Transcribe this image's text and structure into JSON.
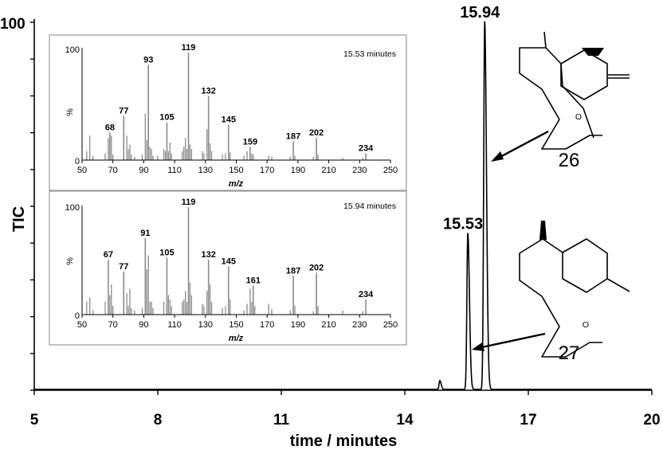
{
  "chart_data": [
    {
      "type": "line",
      "name": "total ion chromatogram",
      "xlabel": "time / minutes",
      "ylabel": "TIC",
      "xlim": [
        5,
        20
      ],
      "ylim": [
        0,
        100
      ],
      "x_ticks": [
        5,
        8,
        11,
        14,
        17,
        20
      ],
      "x_tick_labels": [
        "5",
        "8",
        "11",
        "14",
        "17",
        "20"
      ],
      "y_tick_label_top": "100",
      "y_minor_ticks": 10,
      "peaks": [
        {
          "time": 14.85,
          "height": 2.4,
          "label": ""
        },
        {
          "time": 15.53,
          "height": 42.5,
          "label": "15.53"
        },
        {
          "time": 15.94,
          "height": 100,
          "label": "15.94"
        }
      ],
      "compounds": [
        {
          "label": "26",
          "peak": "15.94"
        },
        {
          "label": "27",
          "peak": "15.53"
        }
      ]
    },
    {
      "type": "bar",
      "name": "mass spectrum 15.53 minutes",
      "title": "15.53 minutes",
      "xlabel": "m/z",
      "ylabel": "%",
      "y_top_label": "100",
      "y_zero_label": "0",
      "xlim": [
        50,
        250
      ],
      "ylim": [
        0,
        100
      ],
      "x_ticks": [
        50,
        70,
        90,
        110,
        130,
        150,
        170,
        190,
        210,
        230,
        250
      ],
      "labeled_peaks": [
        {
          "mz": 68,
          "intensity": 25,
          "label": "68"
        },
        {
          "mz": 77,
          "intensity": 40,
          "label": "77"
        },
        {
          "mz": 93,
          "intensity": 86,
          "label": "93"
        },
        {
          "mz": 105,
          "intensity": 34,
          "label": "105"
        },
        {
          "mz": 119,
          "intensity": 97,
          "label": "119"
        },
        {
          "mz": 132,
          "intensity": 58,
          "label": "132"
        },
        {
          "mz": 145,
          "intensity": 32,
          "label": "145"
        },
        {
          "mz": 159,
          "intensity": 12,
          "label": "159"
        },
        {
          "mz": 187,
          "intensity": 17,
          "label": "187"
        },
        {
          "mz": 202,
          "intensity": 20,
          "label": "202"
        },
        {
          "mz": 234,
          "intensity": 6,
          "label": "234"
        }
      ],
      "minor_peaks": [
        {
          "mz": 53,
          "intensity": 8
        },
        {
          "mz": 55,
          "intensity": 22
        },
        {
          "mz": 57,
          "intensity": 4
        },
        {
          "mz": 65,
          "intensity": 6
        },
        {
          "mz": 67,
          "intensity": 20
        },
        {
          "mz": 69,
          "intensity": 22
        },
        {
          "mz": 70,
          "intensity": 5
        },
        {
          "mz": 79,
          "intensity": 22
        },
        {
          "mz": 80,
          "intensity": 10
        },
        {
          "mz": 81,
          "intensity": 14
        },
        {
          "mz": 82,
          "intensity": 5
        },
        {
          "mz": 84,
          "intensity": 3
        },
        {
          "mz": 89,
          "intensity": 5
        },
        {
          "mz": 91,
          "intensity": 42
        },
        {
          "mz": 92,
          "intensity": 18
        },
        {
          "mz": 94,
          "intensity": 12
        },
        {
          "mz": 95,
          "intensity": 10
        },
        {
          "mz": 96,
          "intensity": 4
        },
        {
          "mz": 99,
          "intensity": 4
        },
        {
          "mz": 103,
          "intensity": 10
        },
        {
          "mz": 104,
          "intensity": 8
        },
        {
          "mz": 106,
          "intensity": 8
        },
        {
          "mz": 107,
          "intensity": 16
        },
        {
          "mz": 108,
          "intensity": 6
        },
        {
          "mz": 115,
          "intensity": 8
        },
        {
          "mz": 116,
          "intensity": 12
        },
        {
          "mz": 117,
          "intensity": 20
        },
        {
          "mz": 118,
          "intensity": 10
        },
        {
          "mz": 120,
          "intensity": 14
        },
        {
          "mz": 121,
          "intensity": 10
        },
        {
          "mz": 128,
          "intensity": 8
        },
        {
          "mz": 129,
          "intensity": 6
        },
        {
          "mz": 131,
          "intensity": 28
        },
        {
          "mz": 133,
          "intensity": 15
        },
        {
          "mz": 134,
          "intensity": 8
        },
        {
          "mz": 141,
          "intensity": 5
        },
        {
          "mz": 143,
          "intensity": 6
        },
        {
          "mz": 146,
          "intensity": 7
        },
        {
          "mz": 155,
          "intensity": 4
        },
        {
          "mz": 157,
          "intensity": 8
        },
        {
          "mz": 160,
          "intensity": 6
        },
        {
          "mz": 161,
          "intensity": 5
        },
        {
          "mz": 171,
          "intensity": 4
        },
        {
          "mz": 173,
          "intensity": 3
        },
        {
          "mz": 185,
          "intensity": 3
        },
        {
          "mz": 188,
          "intensity": 4
        },
        {
          "mz": 200,
          "intensity": 3
        },
        {
          "mz": 203,
          "intensity": 5
        },
        {
          "mz": 219,
          "intensity": 2
        },
        {
          "mz": 232,
          "intensity": 2
        }
      ]
    },
    {
      "type": "bar",
      "name": "mass spectrum 15.94 minutes",
      "title": "15.94 minutes",
      "xlabel": "m/z",
      "ylabel": "%",
      "y_top_label": "100",
      "y_zero_label": "0",
      "xlim": [
        50,
        250
      ],
      "ylim": [
        0,
        100
      ],
      "x_ticks": [
        50,
        70,
        90,
        110,
        130,
        150,
        170,
        190,
        210,
        230,
        250
      ],
      "labeled_peaks": [
        {
          "mz": 67,
          "intensity": 51,
          "label": "67"
        },
        {
          "mz": 77,
          "intensity": 40,
          "label": "77"
        },
        {
          "mz": 91,
          "intensity": 71,
          "label": "91"
        },
        {
          "mz": 105,
          "intensity": 53,
          "label": "105"
        },
        {
          "mz": 119,
          "intensity": 100,
          "label": "119"
        },
        {
          "mz": 132,
          "intensity": 51,
          "label": "132"
        },
        {
          "mz": 145,
          "intensity": 45,
          "label": "145"
        },
        {
          "mz": 161,
          "intensity": 27,
          "label": "161"
        },
        {
          "mz": 187,
          "intensity": 36,
          "label": "187"
        },
        {
          "mz": 202,
          "intensity": 39,
          "label": "202"
        },
        {
          "mz": 234,
          "intensity": 14,
          "label": "234"
        }
      ],
      "minor_peaks": [
        {
          "mz": 53,
          "intensity": 12
        },
        {
          "mz": 55,
          "intensity": 16
        },
        {
          "mz": 57,
          "intensity": 4
        },
        {
          "mz": 65,
          "intensity": 12
        },
        {
          "mz": 68,
          "intensity": 18
        },
        {
          "mz": 69,
          "intensity": 28
        },
        {
          "mz": 70,
          "intensity": 8
        },
        {
          "mz": 79,
          "intensity": 20
        },
        {
          "mz": 80,
          "intensity": 8
        },
        {
          "mz": 81,
          "intensity": 24
        },
        {
          "mz": 82,
          "intensity": 6
        },
        {
          "mz": 84,
          "intensity": 4
        },
        {
          "mz": 89,
          "intensity": 6
        },
        {
          "mz": 92,
          "intensity": 42
        },
        {
          "mz": 93,
          "intensity": 55
        },
        {
          "mz": 94,
          "intensity": 12
        },
        {
          "mz": 95,
          "intensity": 12
        },
        {
          "mz": 96,
          "intensity": 6
        },
        {
          "mz": 103,
          "intensity": 12
        },
        {
          "mz": 106,
          "intensity": 18
        },
        {
          "mz": 107,
          "intensity": 14
        },
        {
          "mz": 108,
          "intensity": 8
        },
        {
          "mz": 115,
          "intensity": 12
        },
        {
          "mz": 116,
          "intensity": 14
        },
        {
          "mz": 117,
          "intensity": 22
        },
        {
          "mz": 118,
          "intensity": 12
        },
        {
          "mz": 120,
          "intensity": 30
        },
        {
          "mz": 121,
          "intensity": 18
        },
        {
          "mz": 128,
          "intensity": 10
        },
        {
          "mz": 129,
          "intensity": 8
        },
        {
          "mz": 131,
          "intensity": 22
        },
        {
          "mz": 133,
          "intensity": 28
        },
        {
          "mz": 134,
          "intensity": 12
        },
        {
          "mz": 141,
          "intensity": 6
        },
        {
          "mz": 143,
          "intensity": 8
        },
        {
          "mz": 146,
          "intensity": 14
        },
        {
          "mz": 155,
          "intensity": 4
        },
        {
          "mz": 157,
          "intensity": 10
        },
        {
          "mz": 159,
          "intensity": 24
        },
        {
          "mz": 160,
          "intensity": 12
        },
        {
          "mz": 162,
          "intensity": 8
        },
        {
          "mz": 171,
          "intensity": 10
        },
        {
          "mz": 173,
          "intensity": 5
        },
        {
          "mz": 185,
          "intensity": 4
        },
        {
          "mz": 188,
          "intensity": 8
        },
        {
          "mz": 200,
          "intensity": 3
        },
        {
          "mz": 203,
          "intensity": 8
        },
        {
          "mz": 219,
          "intensity": 4
        },
        {
          "mz": 232,
          "intensity": 3
        }
      ]
    }
  ]
}
